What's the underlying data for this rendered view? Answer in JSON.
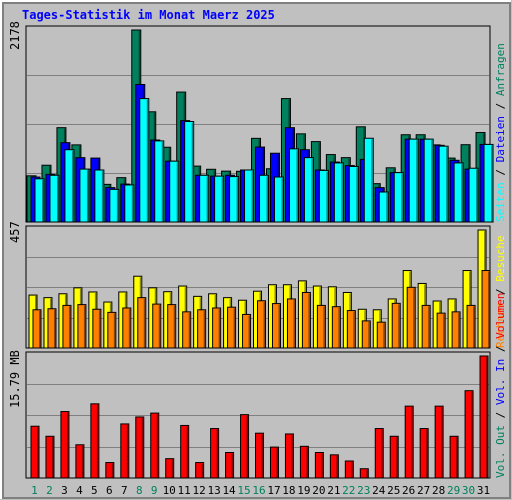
{
  "chart_data": [
    {
      "type": "bar",
      "title": "Tages-Statistik im Monat Maerz 2025",
      "y_max_label": "2178",
      "ylim": [
        0,
        2178
      ],
      "legend": [
        {
          "label": "Anfragen",
          "color": "#00805c"
        },
        {
          "label": "Dateien",
          "color": "#0000ff"
        },
        {
          "label": "Seiten",
          "color": "#00ffff"
        }
      ],
      "legend_separator": "/",
      "categories": [
        "1",
        "2",
        "3",
        "4",
        "5",
        "6",
        "7",
        "8",
        "9",
        "10",
        "11",
        "12",
        "13",
        "14",
        "15",
        "16",
        "17",
        "18",
        "19",
        "20",
        "21",
        "22",
        "23",
        "24",
        "25",
        "26",
        "27",
        "28",
        "29",
        "30",
        "31"
      ],
      "series": [
        {
          "name": "Anfragen",
          "color": "#00805c",
          "values": [
            524,
            644,
            1070,
            875,
            599,
            427,
            503,
            2178,
            1250,
            848,
            1474,
            634,
            598,
            577,
            575,
            949,
            604,
            1400,
            1000,
            912,
            765,
            730,
            1080,
            435,
            615,
            990,
            990,
            875,
            725,
            877,
            1015
          ]
        },
        {
          "name": "Dateien",
          "color": "#0000ff",
          "values": [
            510,
            540,
            900,
            730,
            725,
            390,
            430,
            1560,
            930,
            690,
            1150,
            530,
            520,
            530,
            590,
            850,
            780,
            1070,
            820,
            590,
            680,
            640,
            710,
            390,
            560,
            940,
            940,
            870,
            700,
            600,
            880
          ]
        },
        {
          "name": "Seiten",
          "color": "#00ffff",
          "values": [
            490,
            530,
            820,
            600,
            590,
            370,
            420,
            1400,
            920,
            690,
            1140,
            530,
            520,
            515,
            590,
            530,
            510,
            830,
            730,
            585,
            670,
            630,
            950,
            340,
            560,
            940,
            940,
            860,
            670,
            610,
            880
          ]
        }
      ]
    },
    {
      "type": "bar",
      "y_max_label": "457",
      "ylim": [
        0,
        457
      ],
      "legend": [
        {
          "label": "Besuche",
          "color": "#ffff00"
        },
        {
          "label": "Rechner",
          "color": "#ff8000"
        }
      ],
      "legend_separator": "/",
      "categories": [
        "1",
        "2",
        "3",
        "4",
        "5",
        "6",
        "7",
        "8",
        "9",
        "10",
        "11",
        "12",
        "13",
        "14",
        "15",
        "16",
        "17",
        "18",
        "19",
        "20",
        "21",
        "22",
        "23",
        "24",
        "25",
        "26",
        "27",
        "28",
        "29",
        "30",
        "31"
      ],
      "series": [
        {
          "name": "Besuche",
          "color": "#ffff00",
          "values": [
            205,
            195,
            210,
            233,
            217,
            178,
            217,
            278,
            233,
            218,
            240,
            200,
            210,
            195,
            185,
            220,
            245,
            245,
            260,
            240,
            237,
            215,
            150,
            148,
            190,
            300,
            250,
            182,
            190,
            300,
            457
          ]
        },
        {
          "name": "Rechner",
          "color": "#ff8000",
          "values": [
            148,
            152,
            165,
            168,
            150,
            138,
            155,
            195,
            170,
            168,
            140,
            148,
            155,
            158,
            130,
            183,
            172,
            190,
            215,
            165,
            160,
            145,
            105,
            100,
            173,
            235,
            165,
            135,
            140,
            165,
            300
          ]
        }
      ]
    },
    {
      "type": "bar",
      "y_max_label": "15.79 MB",
      "ylim": [
        0,
        15.79
      ],
      "legend": [
        {
          "label": "Volumen",
          "color": "#ff0000"
        },
        {
          "label": "Vol. In",
          "color": "#0000ff"
        },
        {
          "label": "Vol. Out",
          "color": "#00805c"
        }
      ],
      "legend_separator": "/",
      "categories": [
        "1",
        "2",
        "3",
        "4",
        "5",
        "6",
        "7",
        "8",
        "9",
        "10",
        "11",
        "12",
        "13",
        "14",
        "15",
        "16",
        "17",
        "18",
        "19",
        "20",
        "21",
        "22",
        "23",
        "24",
        "25",
        "26",
        "27",
        "28",
        "29",
        "30",
        "31"
      ],
      "series": [
        {
          "name": "Volumen",
          "color": "#ff0000",
          "values": [
            6.7,
            5.4,
            8.6,
            4.3,
            9.6,
            2.0,
            7.0,
            7.9,
            8.4,
            2.5,
            6.8,
            2.0,
            6.4,
            3.3,
            8.2,
            5.8,
            4.0,
            5.7,
            4.1,
            3.3,
            3.0,
            2.2,
            1.2,
            6.4,
            5.4,
            9.3,
            6.4,
            9.3,
            5.4,
            11.3,
            15.79
          ]
        }
      ]
    }
  ],
  "x_axis": {
    "labels": [
      "1",
      "2",
      "3",
      "4",
      "5",
      "6",
      "7",
      "8",
      "9",
      "10",
      "11",
      "12",
      "13",
      "14",
      "15",
      "16",
      "17",
      "18",
      "19",
      "20",
      "21",
      "22",
      "23",
      "24",
      "25",
      "26",
      "27",
      "28",
      "29",
      "30",
      "31"
    ],
    "weekend_days": [
      1,
      2,
      8,
      9,
      15,
      16,
      22,
      23,
      29,
      30
    ],
    "weekend_color": "#00805c",
    "weekday_color": "#000000"
  },
  "colors": {
    "background": "#c0c0c0",
    "title": "#0000ff",
    "outline": "#000000"
  }
}
